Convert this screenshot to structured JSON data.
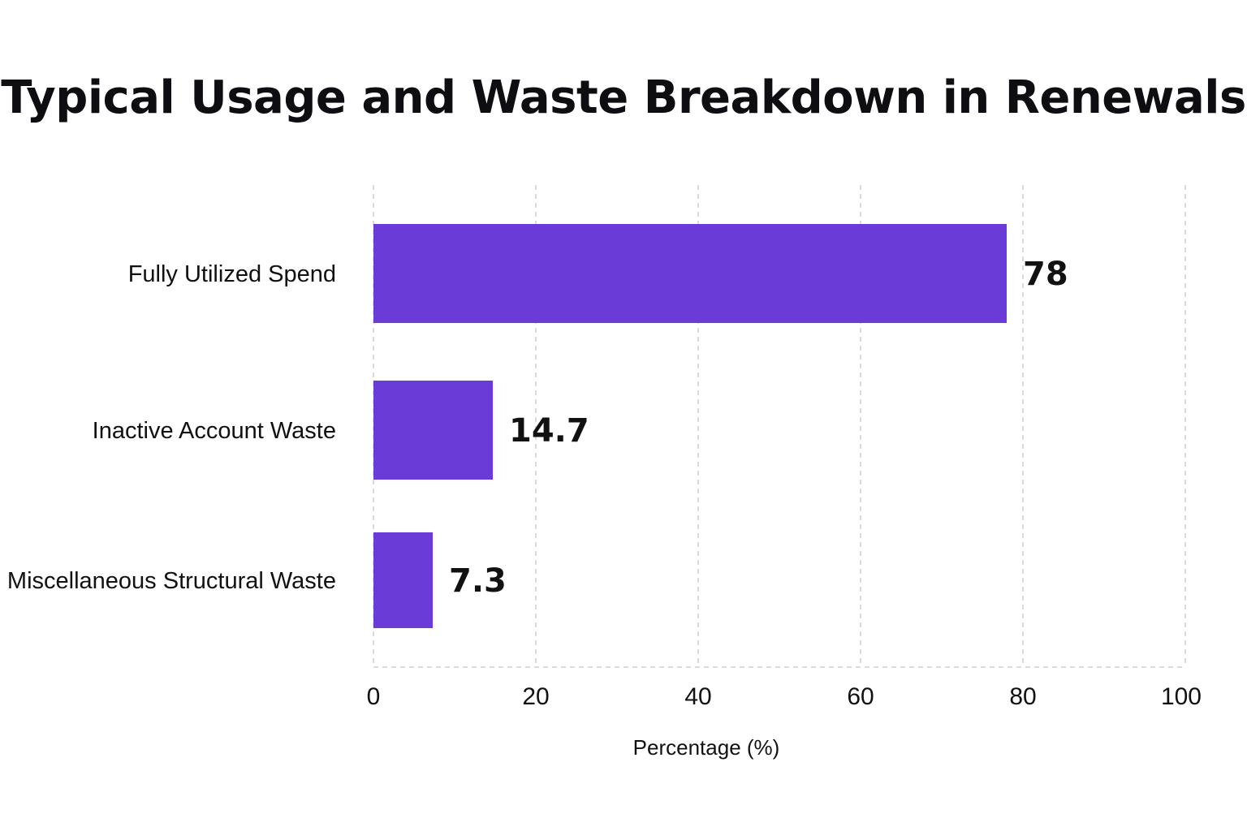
{
  "chart_data": {
    "type": "bar",
    "orientation": "horizontal",
    "title": "Typical Usage and Waste Breakdown in Renewals",
    "xlabel": "Percentage (%)",
    "ylabel": "",
    "categories": [
      "Fully Utilized Spend",
      "Inactive Account Waste",
      "Miscellaneous Structural Waste"
    ],
    "values": [
      78,
      14.7,
      7.3
    ],
    "value_labels": [
      "78",
      "14.7",
      "7.3"
    ],
    "xlim": [
      0,
      100
    ],
    "xticks": [
      0,
      20,
      40,
      60,
      80,
      100
    ],
    "xtick_labels": [
      "0",
      "20",
      "40",
      "60",
      "80",
      "100"
    ],
    "grid": "vertical-dashed",
    "bar_color": "#6a3bd6",
    "grid_color": "#cfcfd4"
  }
}
